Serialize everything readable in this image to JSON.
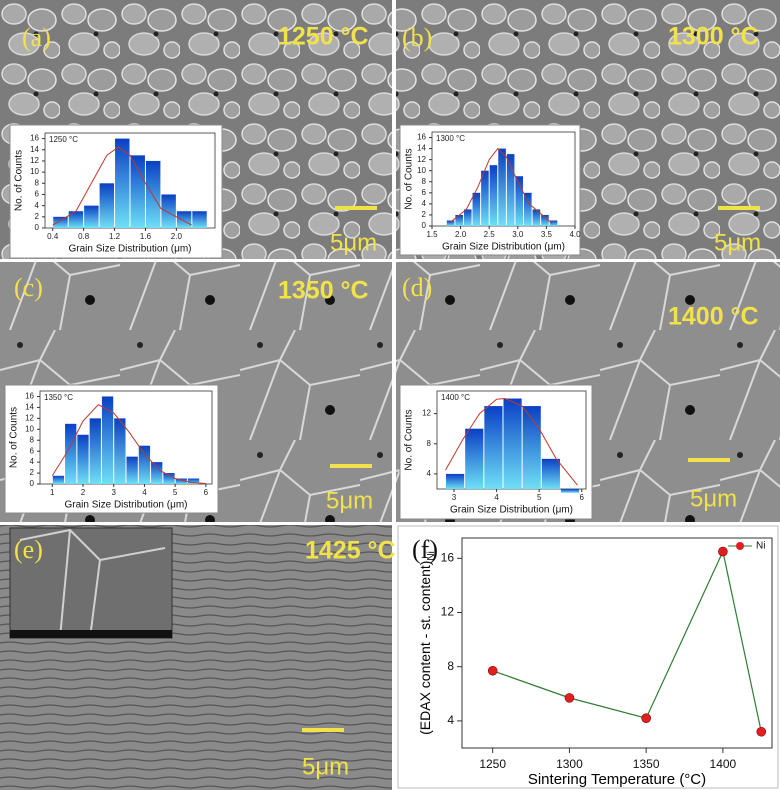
{
  "panels": [
    {
      "label": "(a)",
      "temperature": "1250 °C",
      "scale_bar": "5μm"
    },
    {
      "label": "(b)",
      "temperature": "1300 °C",
      "scale_bar": "5μm"
    },
    {
      "label": "(c)",
      "temperature": "1350 °C",
      "scale_bar": "5μm"
    },
    {
      "label": "(d)",
      "temperature": "1400 °C",
      "scale_bar": "5μm"
    },
    {
      "label": "(e)",
      "temperature": "1425 °C",
      "scale_bar": "5μm"
    },
    {
      "label": "(f)"
    }
  ],
  "chart_data": [
    {
      "type": "histogram",
      "title": "1250 °C",
      "x_label": "Grain Size Distribution (μm)",
      "y_label": "No. of Counts",
      "bins": [
        0.4,
        0.6,
        0.8,
        1.0,
        1.2,
        1.4,
        1.6,
        1.8,
        2.0,
        2.2,
        2.4
      ],
      "values": [
        2,
        3,
        4,
        8,
        16,
        13,
        12,
        6,
        3,
        3
      ],
      "gradient": [
        "#0a3fc4",
        "#6fe0f7"
      ],
      "fit_color": "#c0392b",
      "fit_x": [
        0.4,
        0.7,
        0.9,
        1.1,
        1.25,
        1.4,
        1.6,
        1.8,
        2.2
      ],
      "fit_values": [
        0.5,
        3,
        8,
        13,
        14.5,
        13,
        8,
        3.5,
        0.5
      ],
      "xlim": [
        0.3,
        2.5
      ],
      "xticks": [
        0.4,
        0.8,
        1.2,
        1.6,
        {
          "value": 2,
          "label": "2.0"
        }
      ],
      "ylim": [
        0,
        17
      ],
      "yticks": [
        0,
        2,
        4,
        6,
        8,
        10,
        12,
        14,
        16
      ]
    },
    {
      "type": "histogram",
      "title": "1300 °C",
      "x_label": "Grain Size Distribution (μm)",
      "y_label": "No. of Counts",
      "bins": [
        1.75,
        1.9,
        2.05,
        2.2,
        2.35,
        2.5,
        2.65,
        2.8,
        2.95,
        3.1,
        3.25,
        3.4,
        3.55,
        3.7
      ],
      "values": [
        1,
        2,
        3,
        6,
        10,
        11,
        14,
        13,
        9,
        6,
        3,
        2,
        1
      ],
      "gradient": [
        "#0a3fc4",
        "#6fe0f7"
      ],
      "fit_color": "#c0392b",
      "fit_x": [
        1.8,
        2.1,
        2.3,
        2.5,
        2.65,
        2.8,
        3.0,
        3.2,
        3.6
      ],
      "fit_values": [
        0.5,
        3,
        7,
        12,
        14,
        12.5,
        8,
        4,
        0.5
      ],
      "xlim": [
        1.5,
        4.0
      ],
      "xticks": [
        1.5,
        {
          "value": 2,
          "label": "2.0"
        },
        2.5,
        {
          "value": 3,
          "label": "3.0"
        },
        3.5,
        {
          "value": 4,
          "label": "4.0"
        }
      ],
      "ylim": [
        0,
        17
      ],
      "yticks": [
        0,
        2,
        4,
        6,
        8,
        10,
        12,
        14,
        16
      ]
    },
    {
      "type": "histogram",
      "title": "1350 °C",
      "x_label": "Grain Size Distribution (μm)",
      "y_label": "No. of Counts",
      "bins": [
        1.0,
        1.4,
        1.8,
        2.2,
        2.6,
        3.0,
        3.4,
        3.8,
        4.2,
        4.6,
        5.0,
        5.4,
        5.8
      ],
      "values": [
        1.5,
        11,
        9,
        12,
        16,
        12,
        5,
        7,
        4,
        2,
        1,
        1
      ],
      "gradient": [
        "#0a3fc4",
        "#6fe0f7"
      ],
      "fit_color": "#c0392b",
      "fit_x": [
        1,
        1.5,
        2,
        2.5,
        3,
        3.5,
        4,
        4.5,
        5,
        5.5,
        6
      ],
      "fit_values": [
        1.5,
        6,
        11.5,
        14.5,
        13,
        9.5,
        5.5,
        2.5,
        1,
        0.3,
        0.1
      ],
      "xlim": [
        0.6,
        6.2
      ],
      "xticks": [
        1,
        2,
        3,
        4,
        5,
        6
      ],
      "ylim": [
        0,
        17
      ],
      "yticks": [
        0,
        2,
        4,
        6,
        8,
        10,
        12,
        14,
        16
      ]
    },
    {
      "type": "histogram",
      "title": "1400 °C",
      "x_label": "Grain Size Distribution (μm)",
      "y_label": "No. of Counts",
      "bins": [
        2.8,
        3.25,
        3.7,
        4.15,
        4.6,
        5.05,
        5.5,
        5.95
      ],
      "values": [
        4,
        10,
        13,
        14,
        13,
        6,
        1.5
      ],
      "gradient": [
        "#0a3fc4",
        "#6fe0f7"
      ],
      "fit_color": "#c0392b",
      "fit_x": [
        2.8,
        3.2,
        3.6,
        4.0,
        4.2,
        4.6,
        5.0,
        5.4,
        5.9
      ],
      "fit_values": [
        4.5,
        8.5,
        12,
        13.9,
        14,
        13,
        10,
        6,
        2.5
      ],
      "xlim": [
        2.6,
        6.1
      ],
      "xticks": [
        3,
        4,
        5,
        6
      ],
      "ylim": [
        2,
        15
      ],
      "yticks": [
        4,
        8,
        12
      ]
    },
    {
      "type": "line",
      "x_label": "Sintering Temperature (°C)",
      "y_label": "(EDAX content - st. content)",
      "y_label_sub": "Ni",
      "x": [
        1250,
        1300,
        1350,
        1400,
        1425
      ],
      "series": [
        {
          "name": "Ni",
          "color": "#2e7d32",
          "marker_color": "#e02020",
          "values": [
            7.7,
            5.7,
            4.2,
            16.5,
            3.2
          ]
        }
      ],
      "xlim": [
        1230,
        1432
      ],
      "xticks": [
        1250,
        1300,
        1350,
        1400
      ],
      "ylim": [
        2,
        17.5
      ],
      "yticks": [
        4,
        8,
        12,
        16
      ],
      "legend": "top-right"
    }
  ]
}
